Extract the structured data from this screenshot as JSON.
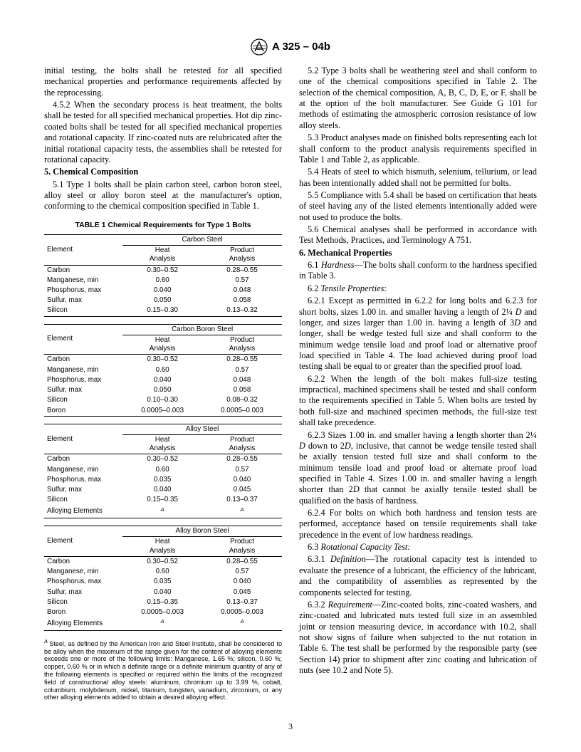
{
  "header": {
    "designation": "A 325 – 04b"
  },
  "page_number": "3",
  "col1": {
    "p_initial": "initial testing, the bolts shall be retested for all specified mechanical properties and performance requirements affected by the reprocessing.",
    "p_452": "4.5.2 When the secondary process is heat treatment, the bolts shall be tested for all specified mechanical properties. Hot dip zinc-coated bolts shall be tested for all specified mechanical properties and rotational capacity. If zinc-coated nuts are relubricated after the initial rotational capacity tests, the assemblies shall be retested for rotational capacity.",
    "sec5_head": "5. Chemical Composition",
    "p_51": "5.1 Type 1 bolts shall be plain carbon steel, carbon boron steel, alloy steel or alloy boron steel at the manufacturer's option, conforming to the chemical composition specified in Table 1.",
    "table1_title": "TABLE 1   Chemical Requirements for Type 1 Bolts",
    "footnote_A": "Steel, as defined by the American Iron and Steel Institute, shall be considered to be alloy when the maximum of the range given for the content of alloying elements exceeds one or more of the following limits: Manganese, 1.65 %; silicon, 0.60 %; copper, 0.60 % or in which a definite range or a definite minimum quantity of any of the following elements is specified or required within the limits of the recognized field of constructional alloy steels: aluminum, chromium up to 3.99 %, cobalt, columbium, molybdenum, nickel, titanium, tungsten, vanadium, zirconium, or any other alloying elements added to obtain a desired alloying effect."
  },
  "tables": {
    "col_element": "Element",
    "col_heat": "Heat\nAnalysis",
    "col_product": "Product\nAnalysis",
    "materials": [
      {
        "name": "Carbon Steel",
        "rows": [
          [
            "Carbon",
            "0.30–0.52",
            "0.28–0.55"
          ],
          [
            "Manganese, min",
            "0.60",
            "0.57"
          ],
          [
            "Phosphorus, max",
            "0.040",
            "0.048"
          ],
          [
            "Sulfur, max",
            "0.050",
            "0.058"
          ],
          [
            "Silicon",
            "0.15–0.30",
            "0.13–0.32"
          ]
        ]
      },
      {
        "name": "Carbon Boron Steel",
        "rows": [
          [
            "Carbon",
            "0.30–0.52",
            "0.28–0.55"
          ],
          [
            "Manganese, min",
            "0.60",
            "0.57"
          ],
          [
            "Phosphorus, max",
            "0.040",
            "0.048"
          ],
          [
            "Sulfur, max",
            "0.050",
            "0.058"
          ],
          [
            "Silicon",
            "0.10–0.30",
            "0.08–0.32"
          ],
          [
            "Boron",
            "0.0005–0.003",
            "0.0005–0.003"
          ]
        ]
      },
      {
        "name": "Alloy Steel",
        "rows": [
          [
            "Carbon",
            "0.30–0.52",
            "0.28–0.55"
          ],
          [
            "Manganese, min",
            "0.60",
            "0.57"
          ],
          [
            "Phosphorus, max",
            "0.035",
            "0.040"
          ],
          [
            "Sulfur, max",
            "0.040",
            "0.045"
          ],
          [
            "Silicon",
            "0.15–0.35",
            "0.13–0.37"
          ],
          [
            "Alloying Elements",
            "A",
            "A"
          ]
        ],
        "sup_rows": [
          5
        ]
      },
      {
        "name": "Alloy Boron Steel",
        "rows": [
          [
            "Carbon",
            "0.30–0.52",
            "0.28–0.55"
          ],
          [
            "Manganese, min",
            "0.60",
            "0.57"
          ],
          [
            "Phosphorus, max",
            "0.035",
            "0.040"
          ],
          [
            "Sulfur, max",
            "0.040",
            "0.045"
          ],
          [
            "Silicon",
            "0.15–0.35",
            "0.13–0.37"
          ],
          [
            "Boron",
            "0.0005–0.003",
            "0.0005–0.003"
          ],
          [
            "Alloying Elements",
            "A",
            "A"
          ]
        ],
        "sup_rows": [
          6
        ]
      }
    ]
  },
  "col2": {
    "p_52": "5.2 Type 3 bolts shall be weathering steel and shall conform to one of the chemical compositions specified in Table 2. The selection of the chemical composition, A, B, C, D, E, or F, shall be at the option of the bolt manufacturer. See Guide G 101 for methods of estimating the atmospheric corrosion resistance of low alloy steels.",
    "p_53": "5.3 Product analyses made on finished bolts representing each lot shall conform to the product analysis requirements specified in Table 1 and Table 2, as applicable.",
    "p_54": "5.4 Heats of steel to which bismuth, selenium, tellurium, or lead has been intentionally added shall not be permitted for bolts.",
    "p_55": "5.5 Compliance with 5.4 shall be based on certification that heats of steel having any of the listed elements intentionally added were not used to produce the bolts.",
    "p_56": "5.6 Chemical analyses shall be performed in accordance with Test Methods, Practices, and Terminology A 751.",
    "sec6_head": "6. Mechanical Properties",
    "p_61_lead": "6.1 ",
    "p_61_em": "Hardness",
    "p_61_rest": "—The bolts shall conform to the hardness specified in Table 3.",
    "p_62_lead": "6.2 ",
    "p_62_em": "Tensile Properties",
    "p_62_rest": ":",
    "p_621a": "6.2.1 Except as permitted in 6.2.2 for long bolts and 6.2.3 for short bolts, sizes 1.00 in. and smaller having a length of 2¼ ",
    "p_621b": " and longer, and sizes larger than 1.00 in. having a length of 3",
    "p_621c": " and longer, shall be wedge tested full size and shall conform to the minimum wedge tensile load and proof load or alternative proof load specified in Table 4. The load achieved during proof load testing shall be equal to or greater than the specified proof load.",
    "p_622": "6.2.2 When the length of the bolt makes full-size testing impractical, machined specimens shall be tested and shall conform to the requirements specified in Table 5. When bolts are tested by both full-size and machined specimen methods, the full-size test shall take precedence.",
    "p_623a": "6.2.3 Sizes 1.00 in. and smaller having a length shorter than 2¼ ",
    "p_623b": " down to 2",
    "p_623c": ", inclusive, that cannot be wedge tensile tested shall be axially tension tested full size and shall conform to the minimum tensile load and proof load or alternate proof load specified in Table 4. Sizes 1.00 in. and smaller having a length shorter than 2",
    "p_623d": " that cannot be axially tensile tested shall be qualified on the basis of hardness.",
    "p_624": "6.2.4 For bolts on which both hardness and tension tests are performed, acceptance based on tensile requirements shall take precedence in the event of low hardness readings.",
    "p_63_lead": "6.3   ",
    "p_63_em": "Rotational Capacity Test:",
    "p_631_lead": "6.3.1 ",
    "p_631_em": "Definition",
    "p_631_rest": "—The rotational capacity test is intended to evaluate the presence of a lubricant, the efficiency of the lubricant, and the compatibility of assemblies as represented by the components selected for testing.",
    "p_632_lead": "6.3.2 ",
    "p_632_em": "Requirement",
    "p_632_rest": "—Zinc-coated bolts, zinc-coated washers, and zinc-coated and lubricated nuts tested full size in an assembled joint or tension measuring device, in accordance with 10.2, shall not show signs of failure when subjected to the nut rotation in Table 6. The test shall be performed by the responsible party (see Section 14) prior to shipment after zinc coating and lubrication of nuts (see 10.2 and Note 5).",
    "D_var": "D"
  }
}
